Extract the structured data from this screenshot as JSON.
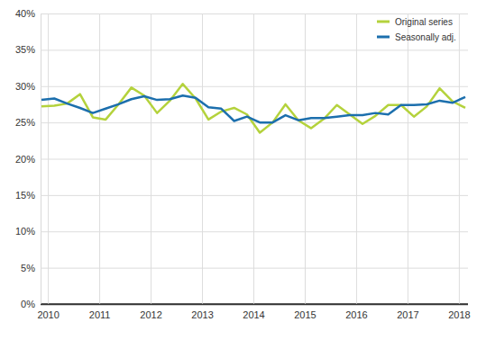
{
  "chart_data": {
    "type": "line",
    "categories": [
      null,
      "2010",
      null,
      null,
      null,
      "2011",
      null,
      null,
      null,
      "2012",
      null,
      null,
      null,
      "2013",
      null,
      null,
      null,
      "2014",
      null,
      null,
      null,
      "2015",
      null,
      null,
      null,
      "2016",
      null,
      null,
      null,
      "2017",
      null,
      null,
      null,
      "2018"
    ],
    "series": [
      {
        "name": "Original series",
        "color": "#b4d23c",
        "values": [
          27.2,
          27.3,
          27.6,
          28.9,
          25.7,
          25.4,
          27.5,
          29.8,
          28.7,
          26.3,
          28.0,
          30.3,
          28.3,
          25.4,
          26.5,
          27.0,
          26.1,
          23.6,
          25.0,
          27.5,
          25.3,
          24.2,
          25.5,
          27.4,
          26.1,
          24.8,
          25.9,
          27.4,
          27.4,
          25.8,
          27.2,
          29.7,
          27.9,
          27.0
        ]
      },
      {
        "name": "Seasonally adj.",
        "color": "#1c6fad",
        "values": [
          28.1,
          28.3,
          27.6,
          27.0,
          26.3,
          26.9,
          27.5,
          28.2,
          28.6,
          28.1,
          28.2,
          28.7,
          28.4,
          27.1,
          26.9,
          25.2,
          25.8,
          25.0,
          25.0,
          26.0,
          25.3,
          25.6,
          25.6,
          25.8,
          26.0,
          26.0,
          26.3,
          26.1,
          27.4,
          27.4,
          27.5,
          28.0,
          27.7,
          28.5
        ]
      }
    ],
    "ylim": [
      0,
      40
    ],
    "yticks": [
      {
        "value": 0,
        "label": "0%"
      },
      {
        "value": 5,
        "label": "5%"
      },
      {
        "value": 10,
        "label": "10%"
      },
      {
        "value": 15,
        "label": "15%"
      },
      {
        "value": 20,
        "label": "20%"
      },
      {
        "value": 25,
        "label": "25%"
      },
      {
        "value": 30,
        "label": "30%"
      },
      {
        "value": 35,
        "label": "35%"
      },
      {
        "value": 40,
        "label": "40%"
      }
    ],
    "grid": true,
    "legend": "upper right"
  }
}
